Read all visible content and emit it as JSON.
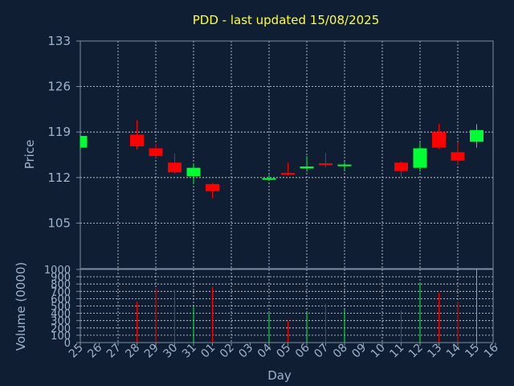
{
  "chart_data": {
    "type": "candlestick",
    "title": "PDD - last updated 15/08/2025",
    "xlabel": "Day",
    "ylabel_price": "Price",
    "ylabel_volume": "Volume (0000)",
    "price_ylim": [
      98,
      133
    ],
    "price_ticks": [
      "105",
      "112",
      "119",
      "126",
      "133"
    ],
    "volume_ylim": [
      0,
      1000
    ],
    "volume_ticks": [
      "0",
      "100",
      "200",
      "300",
      "400",
      "500",
      "600",
      "700",
      "800",
      "900",
      "1000"
    ],
    "grid": true,
    "x_ticks": [
      "25",
      "26",
      "27",
      "28",
      "29",
      "30",
      "31",
      "01",
      "02",
      "03",
      "04",
      "05",
      "06",
      "07",
      "08",
      "09",
      "10",
      "11",
      "12",
      "13",
      "14",
      "15",
      "16"
    ],
    "candles": [
      {
        "day": "25",
        "open": 116.6,
        "close": 118.4,
        "high": 118.6,
        "low": 116.4,
        "volume": 0
      },
      {
        "day": "28",
        "open": 118.6,
        "close": 116.8,
        "high": 120.8,
        "low": 116.3,
        "volume": 560
      },
      {
        "day": "29",
        "open": 116.5,
        "close": 115.3,
        "high": 117.2,
        "low": 115.0,
        "volume": 740
      },
      {
        "day": "30",
        "open": 114.3,
        "close": 112.8,
        "high": 115.7,
        "low": 112.6,
        "volume": 720
      },
      {
        "day": "31",
        "open": 112.2,
        "close": 113.5,
        "high": 114.2,
        "low": 111.0,
        "volume": 490
      },
      {
        "day": "01",
        "open": 111.0,
        "close": 109.9,
        "high": 111.2,
        "low": 108.8,
        "volume": 760
      },
      {
        "day": "04",
        "open": 111.7,
        "close": 111.9,
        "high": 112.4,
        "low": 111.5,
        "volume": 400
      },
      {
        "day": "05",
        "open": 112.7,
        "close": 112.5,
        "high": 114.3,
        "low": 112.3,
        "volume": 300
      },
      {
        "day": "06",
        "open": 113.4,
        "close": 113.7,
        "high": 115.3,
        "low": 112.9,
        "volume": 420
      },
      {
        "day": "07",
        "open": 114.2,
        "close": 113.9,
        "high": 115.8,
        "low": 113.6,
        "volume": 530
      },
      {
        "day": "08",
        "open": 113.8,
        "close": 114.0,
        "high": 114.4,
        "low": 113.2,
        "volume": 450
      },
      {
        "day": "11",
        "open": 114.3,
        "close": 113.0,
        "high": 114.5,
        "low": 112.1,
        "volume": 440
      },
      {
        "day": "12",
        "open": 113.5,
        "close": 116.5,
        "high": 117.4,
        "low": 112.9,
        "volume": 820
      },
      {
        "day": "13",
        "open": 119.0,
        "close": 116.6,
        "high": 120.3,
        "low": 116.4,
        "volume": 680
      },
      {
        "day": "14",
        "open": 115.9,
        "close": 114.6,
        "high": 117.5,
        "low": 114.0,
        "volume": 560
      },
      {
        "day": "15",
        "open": 117.5,
        "close": 119.3,
        "high": 120.2,
        "low": 116.6,
        "volume": 1000
      }
    ],
    "colors": {
      "background": "#0f1e33",
      "up": "#00ff33",
      "down": "#ff0000",
      "title": "#ffff33",
      "text": "#9fb3cc",
      "axis": "#7d8da3",
      "grid": "#d7dde6"
    }
  }
}
